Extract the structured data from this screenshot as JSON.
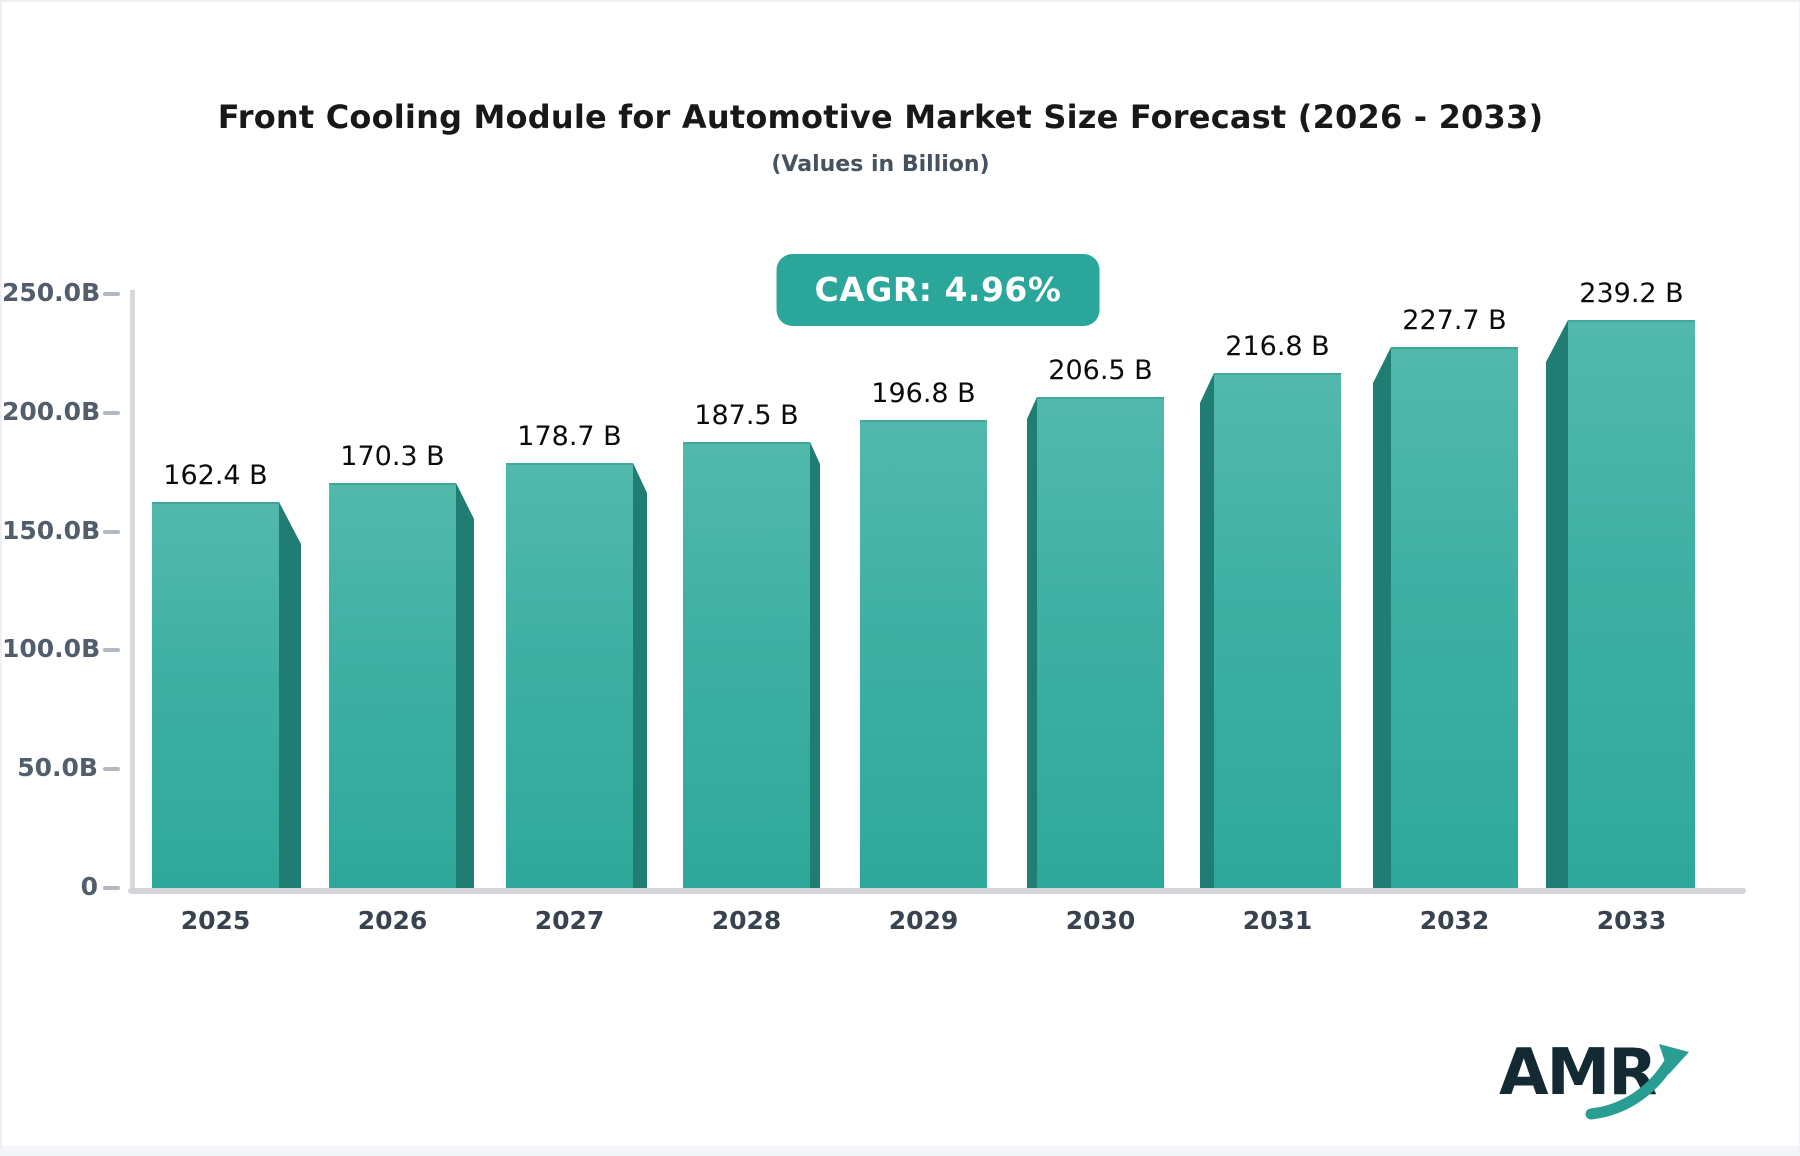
{
  "header": {
    "title": "Front Cooling Module for Automotive Market Size Forecast (2026 - 2033)",
    "subtitle": "(Values in Billion)"
  },
  "badge": {
    "label": "CAGR: 4.96%",
    "bg": "#2aa69b",
    "text_color": "#ffffff"
  },
  "chart_data": {
    "type": "bar",
    "title": "Front Cooling Module for Automotive Market Size Forecast (2026 - 2033)",
    "subtitle": "(Values in Billion)",
    "cagr_percent": 4.96,
    "categories": [
      "2025",
      "2026",
      "2027",
      "2028",
      "2029",
      "2030",
      "2031",
      "2032",
      "2033"
    ],
    "values": [
      162.4,
      170.3,
      178.7,
      187.5,
      196.8,
      206.5,
      216.8,
      227.7,
      239.2
    ],
    "value_labels": [
      "162.4 B",
      "170.3 B",
      "178.7 B",
      "187.5 B",
      "196.8 B",
      "206.5 B",
      "216.8 B",
      "227.7 B",
      "239.2 B"
    ],
    "xlabel": "",
    "ylabel": "",
    "ylim": [
      0,
      250
    ],
    "y_ticks": [
      {
        "label": "0",
        "value": 0
      },
      {
        "label": "50.0B",
        "value": 50
      },
      {
        "label": "100.0B",
        "value": 100
      },
      {
        "label": "150.0B",
        "value": 150
      },
      {
        "label": "200.0B",
        "value": 200
      },
      {
        "label": "250.0B",
        "value": 250
      }
    ],
    "grid": false,
    "legend": "none",
    "colors": {
      "bar_top": "#52b8ac",
      "bar_bottom": "#2ea89a",
      "bar_side": "#207d74",
      "axis": "#d6d8dc",
      "tick_label": "#525e6c",
      "category_label": "#38434f",
      "value_label": "#0b0b0b"
    }
  },
  "logo": {
    "text": "AMR",
    "text_color": "#142a33",
    "arrow_color": "#2a9d93"
  }
}
